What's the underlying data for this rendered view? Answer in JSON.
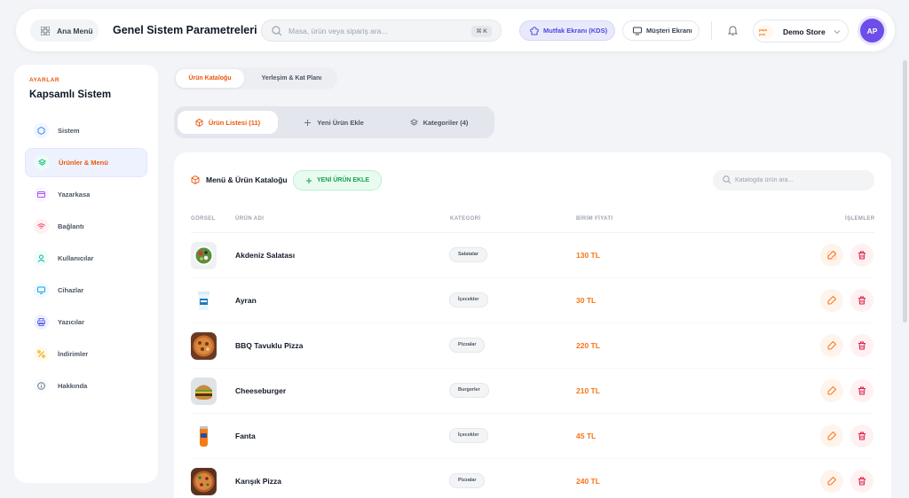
{
  "header": {
    "home_label": "Ana Menü",
    "title": "Genel Sistem Parametreleri",
    "search_placeholder": "Masa, ürün veya sipariş ara...",
    "search_shortcut": "⌘ K",
    "kds_label": "Mutfak Ekranı (KDS)",
    "customer_label": "Müşteri Ekranı",
    "store_logo_text": "paşa pos",
    "store_name": "Demo Store",
    "avatar_initials": "AP"
  },
  "sidebar": {
    "section": "AYARLAR",
    "title": "Kapsamlı Sistem",
    "items": [
      {
        "label": "Sistem",
        "icon": "cube-icon",
        "color": "#3b82f6"
      },
      {
        "label": "Ürünler & Menü",
        "icon": "layers-icon",
        "color": "#10b981"
      },
      {
        "label": "Yazarkasa",
        "icon": "card-icon",
        "color": "#a855f7"
      },
      {
        "label": "Bağlantı",
        "icon": "wifi-icon",
        "color": "#f43f5e"
      },
      {
        "label": "Kullanıcılar",
        "icon": "user-icon",
        "color": "#14b8a6"
      },
      {
        "label": "Cihazlar",
        "icon": "monitor-icon",
        "color": "#0ea5e9"
      },
      {
        "label": "Yazıcılar",
        "icon": "printer-icon",
        "color": "#6366f1"
      },
      {
        "label": "İndirimler",
        "icon": "percent-icon",
        "color": "#f59e0b"
      },
      {
        "label": "Hakkında",
        "icon": "info-icon",
        "color": "#64748b"
      }
    ]
  },
  "top_tabs": [
    "Ürün Kataloğu",
    "Yerleşim & Kat Planı"
  ],
  "sub_tabs": [
    "Ürün Listesi (11)",
    "Yeni Ürün Ekle",
    "Kategoriler (4)"
  ],
  "catalog": {
    "title": "Menü & Ürün Kataloğu",
    "add_label": "YENİ ÜRÜN EKLE",
    "search_placeholder": "Katalogda ürün ara...",
    "columns": [
      "GÖRSEL",
      "ÜRÜN ADI",
      "KATEGORİ",
      "BİRİM FİYATI",
      "İŞLEMLER"
    ],
    "rows": [
      {
        "name": "Akdeniz Salatası",
        "category": "Salatalar",
        "price": "130 TL",
        "image": "salad"
      },
      {
        "name": "Ayran",
        "category": "İçecekler",
        "price": "30 TL",
        "image": "ayran"
      },
      {
        "name": "BBQ Tavuklu Pizza",
        "category": "Pizzalar",
        "price": "220 TL",
        "image": "pizza"
      },
      {
        "name": "Cheeseburger",
        "category": "Burgerler",
        "price": "210 TL",
        "image": "burger"
      },
      {
        "name": "Fanta",
        "category": "İçecekler",
        "price": "45 TL",
        "image": "fanta"
      },
      {
        "name": "Karışık Pizza",
        "category": "Pizzalar",
        "price": "240 TL",
        "image": "pizza2"
      }
    ]
  },
  "colors": {
    "accent": "#ea580c",
    "price": "#f97316",
    "primary": "#6d4ee8",
    "success": "#16a34a",
    "danger": "#e11d48"
  }
}
